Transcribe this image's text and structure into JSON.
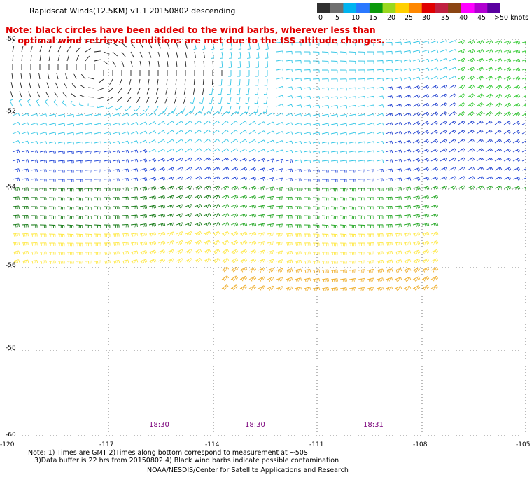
{
  "title": "Rapidscat Winds(12.5KM) v1.1 20150802 descending",
  "note": "Note: black circles have been added to the wind barbs, wherever less than\n    optimal wind retrieval conditions are met due to the ISS altitude changes.",
  "colorbar": {
    "labels": [
      "0",
      "5",
      "10",
      "15",
      "20",
      "25",
      "30",
      "35",
      "40",
      "45",
      ">50 knots"
    ],
    "colors": [
      "#303030",
      "#707070",
      "#00b4f0",
      "#2a78ff",
      "#0b9a0b",
      "#9ad81e",
      "#ffd000",
      "#ff8800",
      "#e00000",
      "#c02040",
      "#8b4513",
      "#ff00ff",
      "#b000d0",
      "#5a00a0"
    ]
  },
  "latitudes": [
    "-50",
    "-52",
    "-54",
    "-56",
    "-58",
    "-60"
  ],
  "longitudes": [
    "-120",
    "-117",
    "-114",
    "-111",
    "-108",
    "-105"
  ],
  "times": [
    "18:30",
    "18:30",
    "18:31"
  ],
  "footnote": "Note: 1) Times are GMT 2)Times along bottom correspond to measurement at ~50S\n   3)Data buffer is 22 hrs from 20150802 4) Black wind barbs indicate possible contamination",
  "credit": "NOAA/NESDIS/Center for Satellite Applications and Research"
}
